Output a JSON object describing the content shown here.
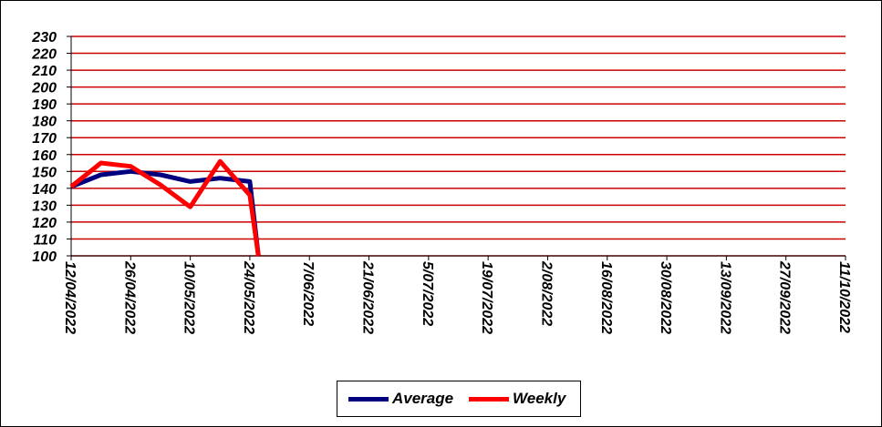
{
  "chart_data": {
    "type": "line",
    "title": "",
    "xlabel": "",
    "ylabel": "",
    "ylim": [
      100,
      230
    ],
    "yticks": [
      100,
      110,
      120,
      130,
      140,
      150,
      160,
      170,
      180,
      190,
      200,
      210,
      220,
      230
    ],
    "xticks": [
      "12/04/2022",
      "26/04/2022",
      "10/05/2022",
      "24/05/2022",
      "7/06/2022",
      "21/06/2022",
      "5/07/2022",
      "19/07/2022",
      "2/08/2022",
      "16/08/2022",
      "30/08/2022",
      "13/09/2022",
      "27/09/2022",
      "11/10/2022"
    ],
    "grid": true,
    "grid_color": "#cc0000",
    "legend_position": "bottom",
    "series": [
      {
        "name": "Average",
        "color": "#00007f",
        "points": [
          {
            "x": "12/04/2022",
            "y": 141
          },
          {
            "x": "19/04/2022",
            "y": 148
          },
          {
            "x": "26/04/2022",
            "y": 150
          },
          {
            "x": "3/05/2022",
            "y": 148
          },
          {
            "x": "10/05/2022",
            "y": 144
          },
          {
            "x": "17/05/2022",
            "y": 146
          },
          {
            "x": "24/05/2022",
            "y": 144
          },
          {
            "x": "26/05/2022",
            "y": 100
          }
        ]
      },
      {
        "name": "Weekly",
        "color": "#ff0000",
        "points": [
          {
            "x": "12/04/2022",
            "y": 141
          },
          {
            "x": "19/04/2022",
            "y": 155
          },
          {
            "x": "26/04/2022",
            "y": 153
          },
          {
            "x": "3/05/2022",
            "y": 142
          },
          {
            "x": "10/05/2022",
            "y": 129
          },
          {
            "x": "17/05/2022",
            "y": 156
          },
          {
            "x": "24/05/2022",
            "y": 136
          },
          {
            "x": "26/05/2022",
            "y": 100
          }
        ]
      }
    ]
  }
}
